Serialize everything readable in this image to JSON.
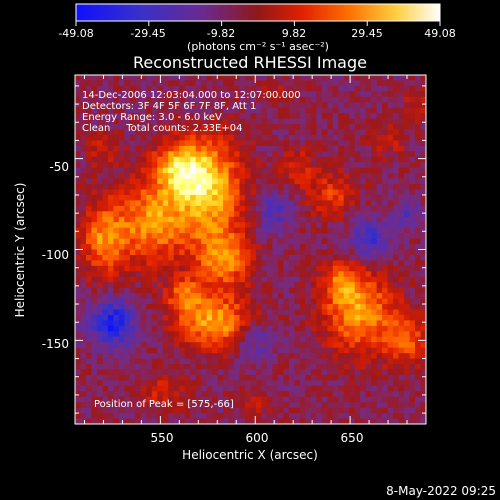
{
  "colorbar": {
    "tick_labels": [
      "-49.08",
      "-29.45",
      "-9.82",
      "9.82",
      "29.45",
      "49.08"
    ],
    "units": "(photons cm⁻² s⁻¹ asec⁻²)",
    "range": [
      -49.08,
      49.08
    ]
  },
  "chart_data": {
    "type": "heatmap",
    "title": "Reconstructed RHESSI Image",
    "xlabel": "Heliocentric X (arcsec)",
    "ylabel": "Heliocentric Y (arcsec)",
    "x_ticks": [
      "550",
      "600",
      "650"
    ],
    "x_tick_values": [
      550,
      600,
      650
    ],
    "y_ticks": [
      "-50",
      "-100",
      "-150"
    ],
    "y_tick_values": [
      -50,
      -100,
      -150
    ],
    "xlim": [
      505,
      690
    ],
    "ylim": [
      -196,
      -4
    ],
    "color_scale": [
      "#1010ff",
      "#3030d0",
      "#5a2ea8",
      "#7a2a7a",
      "#a01818",
      "#e02000",
      "#ff6000",
      "#ffb000",
      "#ffff60",
      "#ffffff"
    ],
    "value_range": [
      -49.08,
      49.08
    ],
    "blobs": [
      {
        "x": 575,
        "y": -66,
        "amp": 44,
        "sx": 13,
        "sy": 18
      },
      {
        "x": 545,
        "y": -85,
        "amp": 34,
        "sx": 14,
        "sy": 16
      },
      {
        "x": 560,
        "y": -55,
        "amp": 32,
        "sx": 10,
        "sy": 10
      },
      {
        "x": 583,
        "y": -105,
        "amp": 34,
        "sx": 10,
        "sy": 12
      },
      {
        "x": 520,
        "y": -95,
        "amp": 30,
        "sx": 8,
        "sy": 14
      },
      {
        "x": 578,
        "y": -140,
        "amp": 38,
        "sx": 14,
        "sy": 10
      },
      {
        "x": 563,
        "y": -125,
        "amp": 24,
        "sx": 7,
        "sy": 7
      },
      {
        "x": 655,
        "y": -135,
        "amp": 36,
        "sx": 13,
        "sy": 16
      },
      {
        "x": 645,
        "y": -118,
        "amp": 22,
        "sx": 7,
        "sy": 8
      },
      {
        "x": 680,
        "y": -150,
        "amp": 24,
        "sx": 8,
        "sy": 10
      },
      {
        "x": 640,
        "y": -70,
        "amp": 20,
        "sx": 9,
        "sy": 9
      },
      {
        "x": 622,
        "y": -55,
        "amp": 18,
        "sx": 6,
        "sy": 7
      },
      {
        "x": 670,
        "y": -40,
        "amp": 14,
        "sx": 7,
        "sy": 6
      },
      {
        "x": 685,
        "y": -20,
        "amp": 14,
        "sx": 5,
        "sy": 6
      },
      {
        "x": 520,
        "y": -45,
        "amp": 14,
        "sx": 6,
        "sy": 7
      },
      {
        "x": 550,
        "y": -178,
        "amp": 16,
        "sx": 9,
        "sy": 6
      },
      {
        "x": 600,
        "y": -185,
        "amp": 12,
        "sx": 7,
        "sy": 5
      },
      {
        "x": 612,
        "y": -15,
        "amp": 12,
        "sx": 6,
        "sy": 5
      },
      {
        "x": 525,
        "y": -140,
        "amp": -34,
        "sx": 9,
        "sy": 9
      },
      {
        "x": 660,
        "y": -95,
        "amp": -24,
        "sx": 8,
        "sy": 8
      },
      {
        "x": 610,
        "y": -80,
        "amp": -18,
        "sx": 7,
        "sy": 9
      },
      {
        "x": 680,
        "y": -80,
        "amp": -16,
        "sx": 5,
        "sy": 6
      },
      {
        "x": 600,
        "y": -150,
        "amp": -16,
        "sx": 7,
        "sy": 8
      }
    ],
    "peak": [
      575,
      -66
    ]
  },
  "annotations": {
    "time": "14-Dec-2006 12:03:04.000 to 12:07:00.000",
    "detectors": "Detectors: 3F 4F 5F 6F 7F 8F, Att 1",
    "energy": "Energy Range: 3.0 - 6.0 keV",
    "clean": "Clean     Total counts: 2.33E+04",
    "peak": "Position of Peak = [575,-66]"
  },
  "footer": {
    "timestamp": "8-May-2022 09:25"
  }
}
